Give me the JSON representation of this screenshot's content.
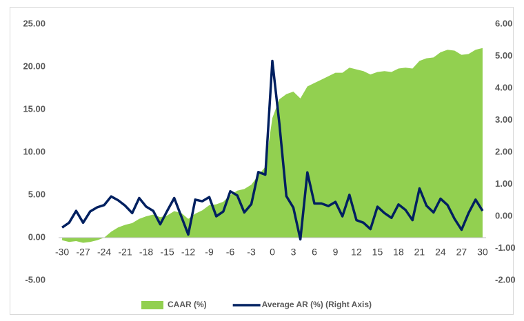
{
  "chart_data": {
    "type": "area-line",
    "x": [
      -30,
      -29,
      -28,
      -27,
      -26,
      -25,
      -24,
      -23,
      -22,
      -21,
      -20,
      -19,
      -18,
      -17,
      -16,
      -15,
      -14,
      -13,
      -12,
      -11,
      -10,
      -9,
      -8,
      -7,
      -6,
      -5,
      -4,
      -3,
      -2,
      -1,
      0,
      1,
      2,
      3,
      4,
      5,
      6,
      7,
      8,
      9,
      10,
      11,
      12,
      13,
      14,
      15,
      16,
      17,
      18,
      19,
      20,
      21,
      22,
      23,
      24,
      25,
      26,
      27,
      28,
      29,
      30
    ],
    "xlim": [
      -30.5,
      30.5
    ],
    "xticks": [
      -30,
      -27,
      -24,
      -21,
      -18,
      -15,
      -12,
      -9,
      -6,
      -3,
      0,
      3,
      6,
      9,
      12,
      15,
      18,
      21,
      24,
      27,
      30
    ],
    "ylim": [
      -5,
      25
    ],
    "yticks": [
      {
        "value": -5,
        "label": "-5.00"
      },
      {
        "value": 0,
        "label": "0.00"
      },
      {
        "value": 5,
        "label": "5.00"
      },
      {
        "value": 10,
        "label": "10.00"
      },
      {
        "value": 15,
        "label": "15.00"
      },
      {
        "value": 20,
        "label": "20.00"
      },
      {
        "value": 25,
        "label": "25.00"
      }
    ],
    "y2lim": [
      -2,
      6
    ],
    "y2ticks": [
      {
        "value": -2,
        "label": "-2.00"
      },
      {
        "value": -1,
        "label": "-1.00"
      },
      {
        "value": 0,
        "label": "0.00"
      },
      {
        "value": 1,
        "label": "1.00"
      },
      {
        "value": 2,
        "label": "2.00"
      },
      {
        "value": 3,
        "label": "3.00"
      },
      {
        "value": 4,
        "label": "4.00"
      },
      {
        "value": 5,
        "label": "5.00"
      },
      {
        "value": 6,
        "label": "6.00"
      }
    ],
    "legend": "bottom",
    "series": [
      {
        "name": "CAAR (%)",
        "type": "area",
        "color": "#92d050",
        "values": [
          -0.3,
          -0.5,
          -0.4,
          -0.6,
          -0.5,
          -0.3,
          0,
          0.7,
          1.2,
          1.5,
          1.7,
          2.2,
          2.5,
          2.7,
          2.4,
          2.6,
          3.1,
          2.9,
          2.2,
          2.8,
          3.2,
          3.8,
          3.9,
          4.2,
          5.0,
          5.5,
          5.7,
          6.2,
          7.3,
          8.3,
          14.0,
          16.2,
          16.8,
          17.1,
          16.3,
          17.7,
          18.1,
          18.5,
          18.9,
          19.3,
          19.3,
          19.9,
          19.7,
          19.5,
          19.1,
          19.4,
          19.5,
          19.4,
          19.8,
          19.9,
          19.8,
          20.7,
          21.0,
          21.1,
          21.7,
          22.0,
          21.9,
          21.4,
          21.5,
          22.0,
          22.2
        ]
      },
      {
        "name": "Average AR (%) (Right Axis)",
        "type": "line",
        "axis": "y2",
        "color": "#002060",
        "values": [
          -0.35,
          -0.2,
          0.17,
          -0.2,
          0.15,
          0.28,
          0.35,
          0.62,
          0.5,
          0.33,
          0.1,
          0.57,
          0.3,
          0.17,
          -0.25,
          0.17,
          0.57,
          0,
          -0.57,
          0.52,
          0.47,
          0.6,
          0,
          0.15,
          0.78,
          0.65,
          0.12,
          0.38,
          1.38,
          1.3,
          4.85,
          2.9,
          0.63,
          0.27,
          -0.72,
          1.37,
          0.4,
          0.4,
          0.32,
          0.45,
          0,
          0.67,
          -0.12,
          -0.2,
          -0.4,
          0.3,
          0.1,
          -0.05,
          0.37,
          0.2,
          -0.12,
          0.87,
          0.33,
          0.12,
          0.55,
          0.35,
          -0.08,
          -0.42,
          0.1,
          0.52,
          0.17
        ]
      }
    ]
  }
}
